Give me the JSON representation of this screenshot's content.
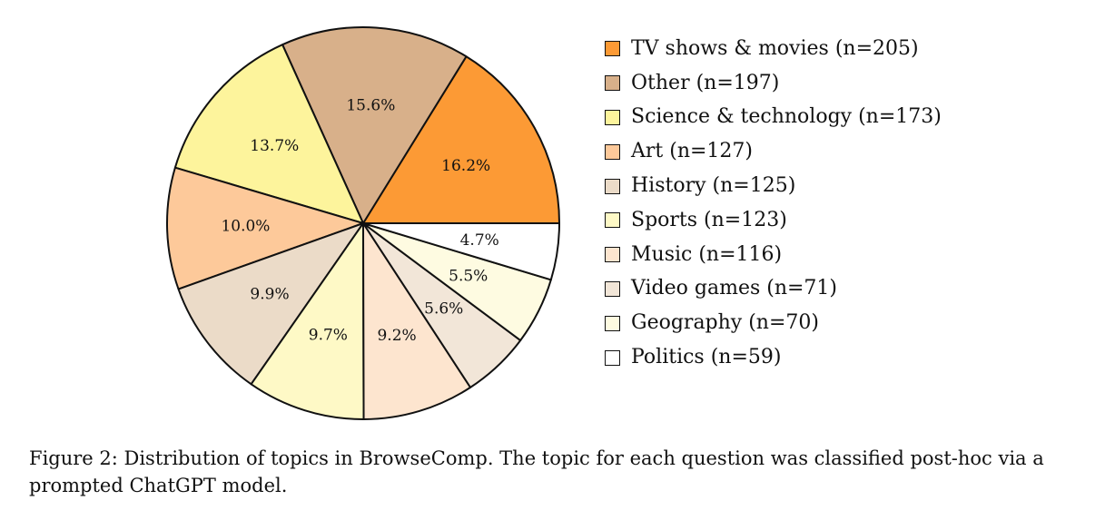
{
  "chart_data": {
    "type": "pie",
    "start_angle_deg": 0,
    "direction": "counterclockwise",
    "slices": [
      {
        "label": "TV shows & movies (n=205)",
        "value": 205,
        "pct_label": "16.2%",
        "color": "#fc9a35"
      },
      {
        "label": "Other (n=197)",
        "value": 197,
        "pct_label": "15.6%",
        "color": "#d8b08a"
      },
      {
        "label": "Science & technology (n=173)",
        "value": 173,
        "pct_label": "13.7%",
        "color": "#fdf49c"
      },
      {
        "label": "Art (n=127)",
        "value": 127,
        "pct_label": "10.0%",
        "color": "#fdc99a"
      },
      {
        "label": "History (n=125)",
        "value": 125,
        "pct_label": "9.9%",
        "color": "#ebdbc8"
      },
      {
        "label": "Sports (n=123)",
        "value": 123,
        "pct_label": "9.7%",
        "color": "#fef9c6"
      },
      {
        "label": "Music (n=116)",
        "value": 116,
        "pct_label": "9.2%",
        "color": "#fde5cf"
      },
      {
        "label": "Video games (n=71)",
        "value": 71,
        "pct_label": "5.6%",
        "color": "#f2e6d8"
      },
      {
        "label": "Geography (n=70)",
        "value": 70,
        "pct_label": "5.5%",
        "color": "#fefbe1"
      },
      {
        "label": "Politics (n=59)",
        "value": 59,
        "pct_label": "4.7%",
        "color": "#ffffff"
      }
    ],
    "legend_placement": "right",
    "edge_color": "#111111"
  },
  "caption": "Figure 2: Distribution of topics in BrowseComp. The topic for each question was classified post-hoc via a prompted ChatGPT model."
}
